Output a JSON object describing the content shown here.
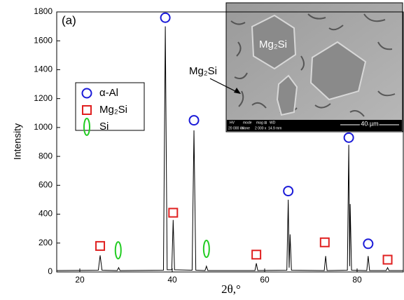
{
  "chart_data": {
    "type": "line",
    "panel_label": "(a)",
    "xlabel": "2θ,°",
    "ylabel": "Intensity",
    "xlim": [
      15,
      90
    ],
    "xticks": [
      20,
      40,
      60,
      80
    ],
    "ylim": [
      0,
      1800
    ],
    "yticks": [
      0,
      200,
      400,
      600,
      800,
      1000,
      1200,
      1400,
      1600,
      1800
    ],
    "series": [
      {
        "color": "#000000",
        "x": [
          15,
          24.0,
          24.4,
          24.8,
          28.1,
          28.4,
          28.7,
          38.1,
          38.5,
          38.9,
          39.9,
          40.2,
          40.5,
          44.3,
          44.7,
          45.1,
          47.1,
          47.4,
          47.7,
          57.9,
          58.2,
          58.5,
          64.8,
          65.1,
          65.3,
          65.5,
          65.8,
          72.9,
          73.2,
          73.5,
          77.9,
          78.2,
          78.4,
          78.5,
          78.8,
          82.1,
          82.4,
          82.7,
          86.3,
          86.6,
          86.9,
          90
        ],
        "values": [
          10,
          12,
          115,
          12,
          10,
          30,
          10,
          12,
          1700,
          15,
          15,
          360,
          15,
          12,
          980,
          12,
          10,
          40,
          10,
          10,
          60,
          10,
          12,
          500,
          30,
          260,
          12,
          10,
          110,
          10,
          12,
          880,
          40,
          470,
          12,
          10,
          110,
          10,
          10,
          30,
          10,
          10
        ]
      }
    ],
    "markers": [
      {
        "name": "α-Al",
        "shape": "circle",
        "color": "#1a1ad8",
        "x": [
          38.5,
          44.7,
          65.1,
          78.2,
          82.4
        ],
        "y": [
          1760,
          1050,
          560,
          930,
          195
        ]
      },
      {
        "name": "Mg₂Si",
        "shape": "square",
        "color": "#e02020",
        "x": [
          24.4,
          40.2,
          58.2,
          73.0,
          86.6
        ],
        "y": [
          180,
          410,
          120,
          205,
          85
        ]
      },
      {
        "name": "Si",
        "shape": "ellipse",
        "color": "#22cc22",
        "x": [
          28.3,
          47.4
        ],
        "y": [
          150,
          160
        ]
      }
    ],
    "inset": {
      "phase_label": "Mg₂Si",
      "arrow_label": "Mg₂Si",
      "bar_headers": [
        "HV",
        "mode",
        "mag ⊞",
        "WD"
      ],
      "bar_values": [
        "20 000 kV",
        "None",
        "2 000 x",
        "14.9 mm"
      ],
      "scale": "40 µm"
    }
  }
}
